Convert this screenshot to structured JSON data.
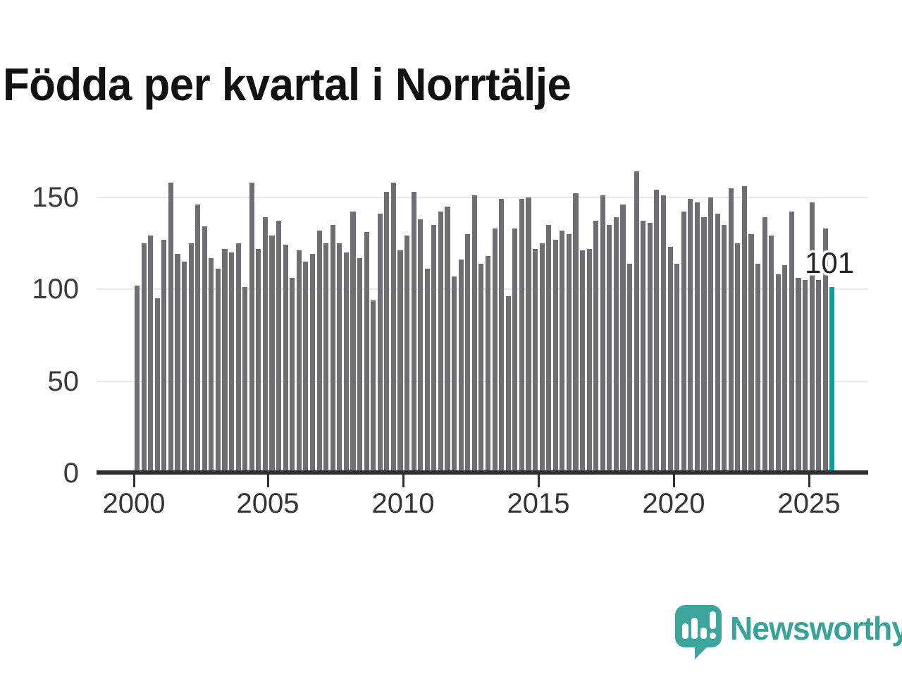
{
  "title": "Födda per kvartal i Norrtälje",
  "chart_data": {
    "type": "bar",
    "title": "Födda per kvartal i Norrtälje",
    "x_unit": "quarter",
    "x_start": "2000 Q1",
    "x_end": "2025 Q4",
    "values": [
      102,
      125,
      129,
      95,
      127,
      158,
      119,
      115,
      125,
      146,
      134,
      117,
      111,
      122,
      120,
      125,
      101,
      158,
      122,
      139,
      129,
      137,
      124,
      106,
      121,
      115,
      119,
      132,
      125,
      135,
      125,
      120,
      142,
      117,
      131,
      94,
      141,
      153,
      158,
      121,
      129,
      153,
      138,
      111,
      135,
      142,
      145,
      107,
      116,
      130,
      151,
      114,
      118,
      133,
      149,
      96,
      133,
      149,
      150,
      122,
      125,
      135,
      127,
      132,
      130,
      152,
      121,
      122,
      137,
      151,
      135,
      139,
      146,
      114,
      164,
      137,
      136,
      154,
      151,
      123,
      114,
      142,
      149,
      147,
      139,
      150,
      141,
      135,
      155,
      125,
      156,
      130,
      114,
      139,
      129,
      108,
      113,
      142,
      106,
      105,
      147,
      105,
      133,
      101
    ],
    "x_tick_labels": [
      "2000",
      "2005",
      "2010",
      "2015",
      "2020",
      "2025"
    ],
    "y_tick_labels": [
      "0",
      "50",
      "100",
      "150"
    ],
    "ylim": [
      0,
      170
    ],
    "grid": "horizontal-only",
    "legend": "none",
    "bar_color": "#6f6e74",
    "highlight_color": "#00a49c",
    "highlighted_bar": {
      "position": "last",
      "value": 101
    },
    "annotation": "101"
  },
  "logo": {
    "wordmark": "Newsworthy",
    "icon": "bar-chart-speech-bubble-icon",
    "icon_color": "#3ca59c",
    "text_color": "#3aa399"
  }
}
